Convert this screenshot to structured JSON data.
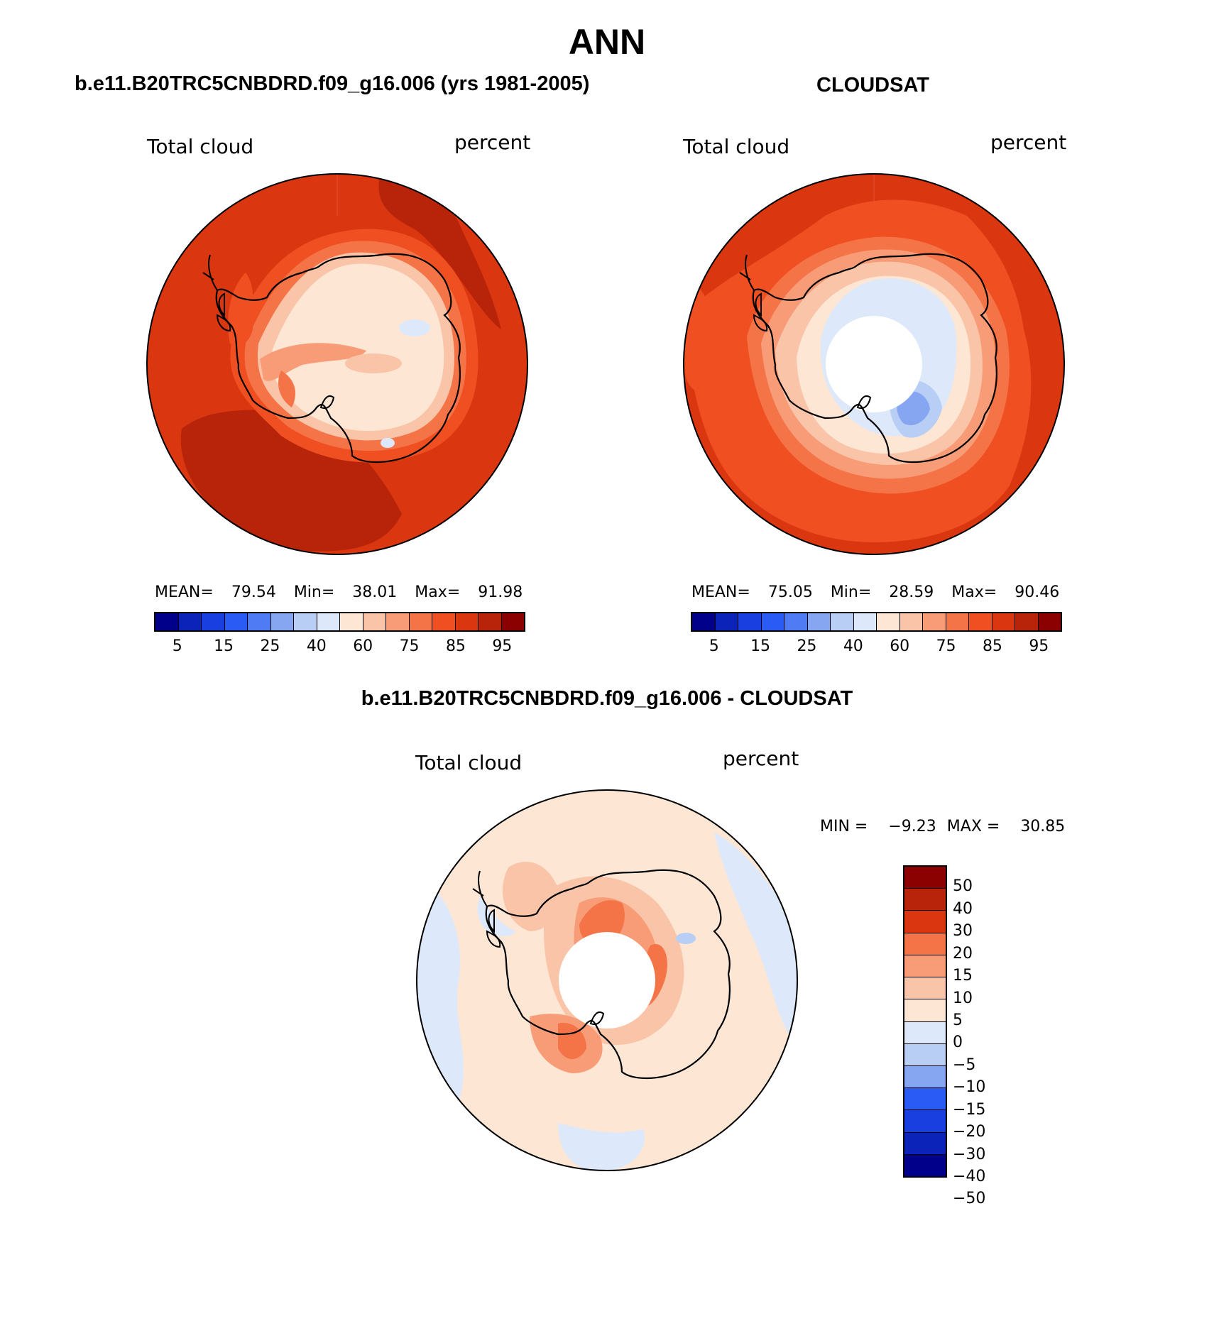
{
  "page": {
    "title": "ANN",
    "subtitle_model": "b.e11.B20TRC5CNBDRD.f09_g16.006 (yrs 1981-2005)",
    "subtitle_obs": "CLOUDSAT",
    "subtitle_diff": "b.e11.B20TRC5CNBDRD.f09_g16.006 - CLOUDSAT"
  },
  "panels": {
    "model": {
      "var_label": "Total cloud",
      "units_label": "percent",
      "stats": {
        "mean_label": "MEAN=",
        "mean": "79.54",
        "min_label": "Min=",
        "min": "38.01",
        "max_label": "Max=",
        "max": "91.98"
      },
      "colorbar_ticks": [
        "5",
        "15",
        "25",
        "40",
        "60",
        "75",
        "85",
        "95"
      ]
    },
    "obs": {
      "var_label": "Total cloud",
      "units_label": "percent",
      "stats": {
        "mean_label": "MEAN=",
        "mean": "75.05",
        "min_label": "Min=",
        "min": "28.59",
        "max_label": "Max=",
        "max": "90.46"
      },
      "colorbar_ticks": [
        "5",
        "15",
        "25",
        "40",
        "60",
        "75",
        "85",
        "95"
      ],
      "has_polar_hole": true
    },
    "diff": {
      "var_label": "Total cloud",
      "units_label": "percent",
      "stats": {
        "min_label": "MIN =",
        "min": "−9.23",
        "max_label": "MAX =",
        "max": "30.85"
      },
      "colorbar_ticks": [
        "50",
        "40",
        "30",
        "20",
        "15",
        "10",
        "5",
        "0",
        "−5",
        "−10",
        "−15",
        "−20",
        "−30",
        "−40",
        "−50"
      ],
      "has_polar_hole": true
    }
  },
  "colors": {
    "abs_scale": [
      "#00008b",
      "#0b23b8",
      "#1a3fe0",
      "#2a5cf5",
      "#4f7cf5",
      "#86a6f2",
      "#b8cef5",
      "#dde9fa",
      "#fde6d4",
      "#fac4a8",
      "#f79c77",
      "#f47448",
      "#f04f22",
      "#da3610",
      "#b7240a",
      "#8b0000"
    ],
    "diff_scale": [
      "#00008b",
      "#0b23b8",
      "#1a3fe0",
      "#2a5cf5",
      "#86a6f2",
      "#b8cef5",
      "#dde9fa",
      "#fde6d4",
      "#fac4a8",
      "#f79c77",
      "#f47448",
      "#da3610",
      "#b7240a",
      "#8b0000"
    ],
    "coastline": "#000000"
  }
}
